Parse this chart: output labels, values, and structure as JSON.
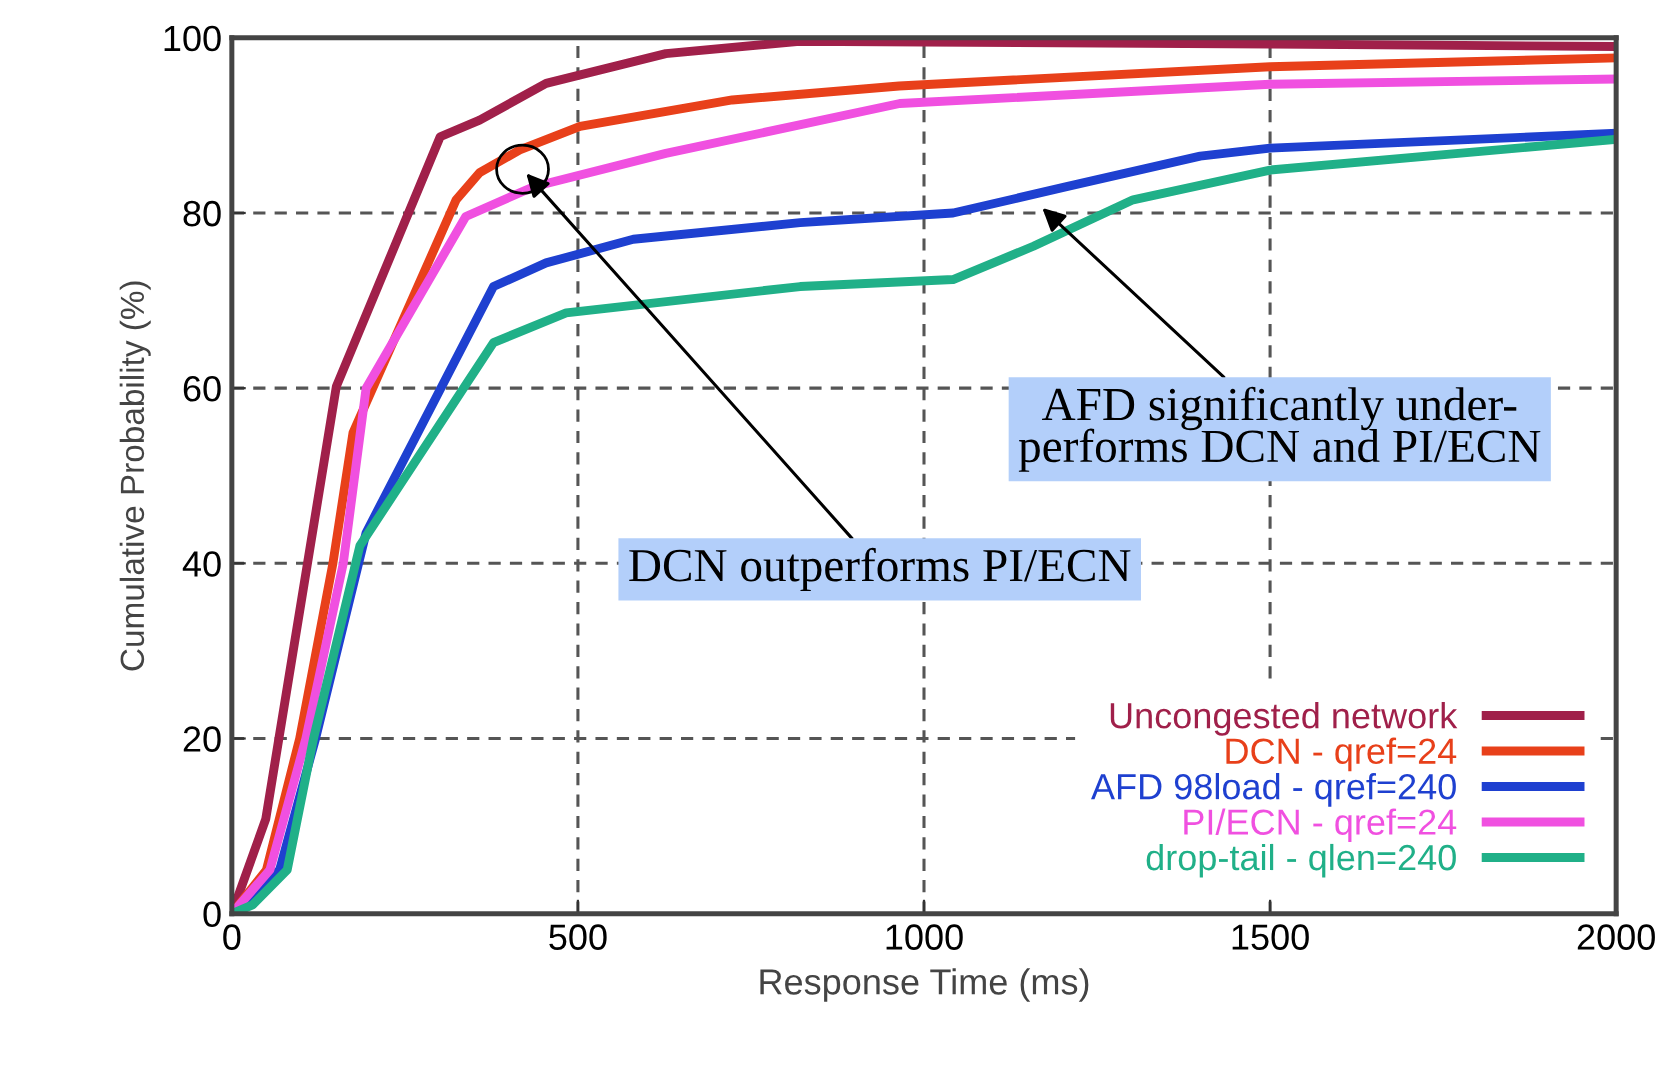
{
  "chart_data": {
    "type": "line",
    "xlabel": "Response Time (ms)",
    "ylabel": "Cumulative Probability (%)",
    "xlim": [
      0,
      2000
    ],
    "ylim": [
      0,
      100
    ],
    "xticks": [
      0,
      500,
      1000,
      1500,
      2000
    ],
    "yticks": [
      0,
      20,
      40,
      60,
      80,
      100
    ],
    "grid": true,
    "legend": "bottom right",
    "line_style": "solid",
    "marker": "none",
    "series": [
      {
        "name": "Uncongested network",
        "color": "#a0204a",
        "x": [
          0,
          49,
          151,
          301,
          358,
          454,
          627,
          820,
          1000,
          1500,
          2000
        ],
        "values": [
          0,
          10.8,
          60.2,
          88.7,
          90.6,
          94.8,
          98.2,
          99.6,
          99.5,
          99.3,
          99
        ]
      },
      {
        "name": "DCN - qref=24",
        "color": "#e8401a",
        "x": [
          0,
          50,
          98,
          146,
          175,
          324,
          358,
          416,
          503,
          723,
          964,
          1500,
          2000
        ],
        "values": [
          0,
          5,
          20,
          40,
          54.9,
          81.5,
          84.6,
          87.2,
          89.9,
          92.9,
          94.5,
          96.7,
          97.7
        ]
      },
      {
        "name": "AFD 98load - qref=240",
        "color": "#1e40d0",
        "x": [
          0,
          69,
          121,
          194,
          378,
          454,
          580,
          821,
          1042,
          1206,
          1399,
          1500,
          2000
        ],
        "values": [
          0,
          5,
          20,
          43.5,
          71.6,
          74.3,
          77,
          78.9,
          80,
          83,
          86.5,
          87.4,
          89.1
        ]
      },
      {
        "name": "PI/ECN - qref=24",
        "color": "#f050e0",
        "x": [
          0,
          55,
          107,
          161,
          194,
          338,
          436,
          627,
          965,
          1500,
          2000
        ],
        "values": [
          0,
          5,
          20,
          40,
          60,
          79.6,
          83,
          86.8,
          92.5,
          94.7,
          95.3
        ]
      },
      {
        "name": "drop-tail - qlen=240",
        "color": "#20b088",
        "x": [
          0,
          30,
          80,
          118,
          185,
          378,
          483,
          821,
          1042,
          1158,
          1302,
          1500,
          2000
        ],
        "values": [
          0,
          1,
          5,
          20,
          42,
          65.2,
          68.6,
          71.6,
          72.4,
          76.2,
          81.5,
          84.9,
          88.4
        ]
      }
    ],
    "annotations": [
      {
        "text": "DCN outperforms PI/ECN",
        "x": 420,
        "y": 85
      },
      {
        "text": "AFD significantly under-\nperforms DCN and PI/ECN",
        "x": 1165,
        "y": 81
      }
    ]
  }
}
